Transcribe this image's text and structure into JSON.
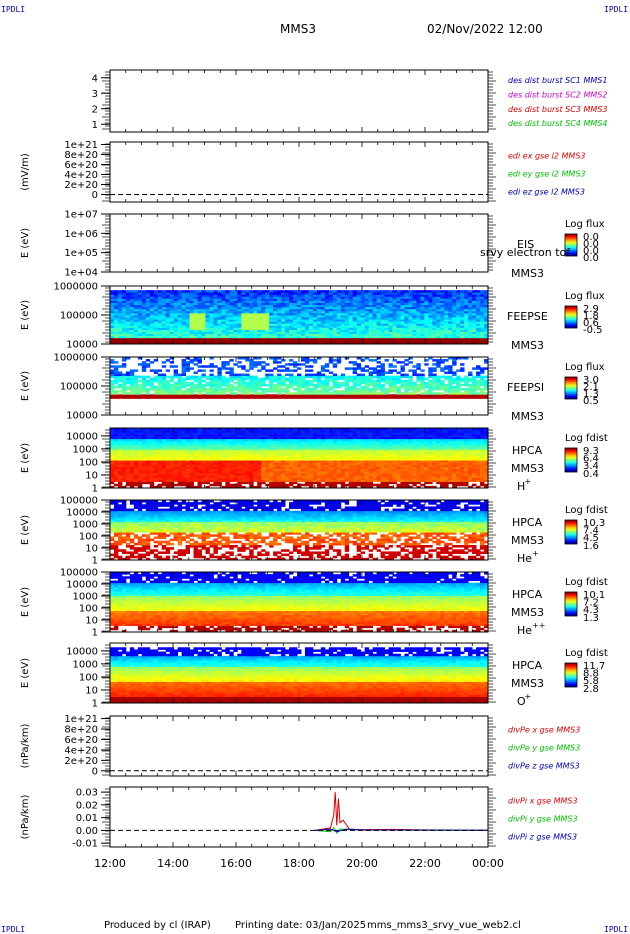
{
  "header": {
    "corner_label": "IPDLI",
    "spacecraft": "MMS3",
    "datetime": "02/Nov/2022 12:00"
  },
  "footer": {
    "produced_by": "Produced by cl (IRAP)",
    "printing_date": "Printing date: 03/Jan/2025",
    "file_name": "mms_mms3_srvy_vue_web2.cl"
  },
  "colors": {
    "mms1": "#0000c0",
    "mms2": "#d000d0",
    "mms3": "#e00000",
    "mms4": "#00c000",
    "x_comp": "#e00000",
    "y_comp": "#00c000",
    "z_comp": "#0000c0"
  },
  "chart_data": [
    {
      "type": "line",
      "panel": "burst",
      "yticks": [
        "1",
        "2",
        "3",
        "4"
      ],
      "ylim": [
        0.5,
        4.5
      ],
      "legend": [
        "des dist burst SC1 MMS1",
        "des dist burst SC2 MMS2",
        "des dist burst SC3 MMS3",
        "des dist burst SC4 MMS4"
      ]
    },
    {
      "type": "line",
      "panel": "edi",
      "ylabel": "(mV/m)",
      "yticks": [
        "0",
        "2e+20",
        "4e+20",
        "6e+20",
        "8e+20",
        "1e+21"
      ],
      "ylim": [
        -1.5e+20,
        1.05e+21
      ],
      "zero_line": true,
      "legend": [
        "edi ex gse l2 MMS3",
        "edi ey gse l2 MMS3",
        "edi ez gse l2 MMS3"
      ]
    },
    {
      "type": "heatmap",
      "panel": "eis",
      "ylabel": "E (eV)",
      "yscale": "log",
      "yticks": [
        "1e+04",
        "1e+05",
        "1e+06",
        "1e+07"
      ],
      "ylim": [
        10000,
        10000000
      ],
      "labels": [
        "EIS",
        "MMS3"
      ],
      "overlay_text": "srvy electron tof",
      "colorbar": {
        "title": "Log flux",
        "ticks": [
          "0.0",
          "0.0",
          "0.0",
          "0.0"
        ]
      }
    },
    {
      "type": "heatmap",
      "panel": "feeps_e",
      "ylabel": "E (eV)",
      "yscale": "log",
      "yticks": [
        "10000",
        "100000",
        "1000000"
      ],
      "ylim": [
        10000,
        1000000
      ],
      "labels": [
        "FEEPSE",
        "MMS3"
      ],
      "colorbar": {
        "title": "Log flux",
        "ticks": [
          "2.9",
          "1.8",
          "0.6",
          "-0.5"
        ]
      }
    },
    {
      "type": "heatmap",
      "panel": "feeps_i",
      "ylabel": "E (eV)",
      "yscale": "log",
      "yticks": [
        "10000",
        "100000",
        "1000000"
      ],
      "ylim": [
        10000,
        1000000
      ],
      "labels": [
        "FEEPSI",
        "MMS3"
      ],
      "colorbar": {
        "title": "Log flux",
        "ticks": [
          "3.0",
          "2.1",
          "1.3",
          "0.5"
        ]
      }
    },
    {
      "type": "heatmap",
      "panel": "hpca_h",
      "ylabel": "E (eV)",
      "yscale": "log",
      "yticks": [
        "1",
        "10",
        "100",
        "1000",
        "10000"
      ],
      "ylim": [
        1,
        40000
      ],
      "labels": [
        "HPCA",
        "MMS3",
        "H",
        "+"
      ],
      "colorbar": {
        "title": "Log fdist",
        "ticks": [
          "9.3",
          "6.4",
          "3.4",
          "0.4"
        ]
      }
    },
    {
      "type": "heatmap",
      "panel": "hpca_he",
      "ylabel": "E (eV)",
      "yscale": "log",
      "yticks": [
        "1",
        "10",
        "100",
        "1000",
        "10000",
        "100000"
      ],
      "ylim": [
        1,
        100000
      ],
      "labels": [
        "HPCA",
        "MMS3",
        "He",
        "+"
      ],
      "colorbar": {
        "title": "Log fdist",
        "ticks": [
          "10.3",
          "7.4",
          "4.5",
          "1.6"
        ]
      }
    },
    {
      "type": "heatmap",
      "panel": "hpca_hepp",
      "ylabel": "E (eV)",
      "yscale": "log",
      "yticks": [
        "1",
        "10",
        "100",
        "1000",
        "10000",
        "100000"
      ],
      "ylim": [
        1,
        100000
      ],
      "labels": [
        "HPCA",
        "MMS3",
        "He",
        "++"
      ],
      "colorbar": {
        "title": "Log fdist",
        "ticks": [
          "10.1",
          "7.2",
          "4.3",
          "1.3"
        ]
      }
    },
    {
      "type": "heatmap",
      "panel": "hpca_o",
      "ylabel": "E (eV)",
      "yscale": "log",
      "yticks": [
        "1",
        "10",
        "100",
        "1000",
        "10000"
      ],
      "ylim": [
        1,
        40000
      ],
      "labels": [
        "HPCA",
        "MMS3",
        "O",
        "+"
      ],
      "colorbar": {
        "title": "Log fdist",
        "ticks": [
          "11.7",
          "8.8",
          "5.8",
          "2.8"
        ]
      }
    },
    {
      "type": "line",
      "panel": "divpe",
      "ylabel": "(nPa/km)",
      "yticks": [
        "0",
        "2e+20",
        "4e+20",
        "6e+20",
        "8e+20",
        "1e+21"
      ],
      "ylim": [
        -1e+20,
        1.05e+21
      ],
      "zero_line": true,
      "legend": [
        "divPe x gse MMS3",
        "divPe y gse MMS3",
        "divPe z gse MMS3"
      ]
    },
    {
      "type": "line",
      "panel": "divpi",
      "ylabel": "(nPa/km)",
      "yticks": [
        "-0.01",
        "0.00",
        "0.01",
        "0.02",
        "0.03"
      ],
      "ylim": [
        -0.013,
        0.034
      ],
      "zero_line": true,
      "legend": [
        "divPi x gse MMS3",
        "divPi y gse MMS3",
        "divPi z gse MMS3"
      ],
      "series": [
        {
          "name": "divPi x gse MMS3",
          "x": [
            18.5,
            19.0,
            19.1,
            19.15,
            19.2,
            19.25,
            19.3,
            19.4,
            19.6,
            20.0,
            21.0,
            22.0,
            23.0,
            24.0
          ],
          "values": [
            0.0,
            0.002,
            0.012,
            0.03,
            0.004,
            0.025,
            0.006,
            0.008,
            0.001,
            0.0006,
            0.0008,
            0.0004,
            0.0003,
            0.0002
          ]
        },
        {
          "name": "divPi y gse MMS3",
          "x": [
            18.5,
            19.0,
            19.1,
            19.2,
            19.3,
            20.0,
            22.0,
            24.0
          ],
          "values": [
            0.0,
            -0.001,
            0.002,
            -0.002,
            0.001,
            0.0004,
            0.0002,
            0.0001
          ]
        },
        {
          "name": "divPi z gse MMS3",
          "x": [
            18.5,
            19.0,
            19.2,
            19.5,
            20.0,
            22.0,
            24.0
          ],
          "values": [
            0.0,
            0.001,
            -0.001,
            0.001,
            0.0003,
            0.0002,
            0.0001
          ]
        }
      ]
    }
  ],
  "x_axis": {
    "ticks": [
      "12:00",
      "14:00",
      "16:00",
      "18:00",
      "20:00",
      "22:00",
      "00:00"
    ],
    "xlim": [
      12,
      24
    ]
  }
}
